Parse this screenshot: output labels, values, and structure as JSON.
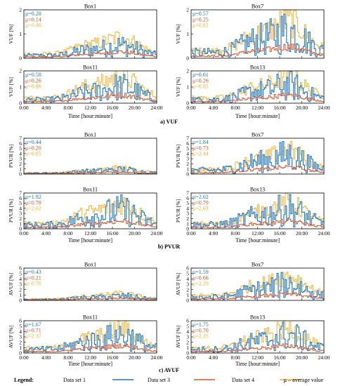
{
  "colors": {
    "set1": "#1f77c4",
    "set3": "#d2562a",
    "set4": "#f2b233"
  },
  "x_ticks": [
    "0:00",
    "4:00",
    "8:00",
    "12:00",
    "16:00",
    "20:00",
    "24:00"
  ],
  "xlabel": "Time [hour:minute]",
  "legend": {
    "title": "Legend:",
    "items": [
      "Data set 1",
      "Data set 3",
      "Data set 4",
      "μ – average value"
    ]
  },
  "sections": [
    {
      "label": "a) VUF",
      "ylabel": "VUF [%]",
      "ylim": [
        0,
        2
      ],
      "y_ticks": [
        "0",
        "1",
        "2"
      ],
      "panels": [
        {
          "title": "Box1",
          "mu_labels": [
            "μ=0.28",
            "μ=0.14",
            "μ=0.46"
          ]
        },
        {
          "title": "Box7",
          "mu_labels": [
            "μ=0.57",
            "μ=0.25",
            "μ=0.82"
          ]
        },
        {
          "title": "Box11",
          "mu_labels": [
            "μ=0.58",
            "μ=0.26",
            "μ=0.86"
          ]
        },
        {
          "title": "Box13",
          "mu_labels": [
            "μ=0.61",
            "μ=0.26",
            "μ=0.85"
          ]
        }
      ]
    },
    {
      "label": "b) PVUR",
      "ylabel": "PVUR [%]",
      "ylim": [
        0,
        7
      ],
      "y_ticks": [
        "0",
        "1",
        "2",
        "3",
        "4",
        "5",
        "6",
        "7"
      ],
      "panels": [
        {
          "title": "Box1",
          "mu_labels": [
            "μ=0.44",
            "μ=0.20",
            "μ=0.65"
          ]
        },
        {
          "title": "Box7",
          "mu_labels": [
            "μ=1.84",
            "μ=0.73",
            "μ=2.44"
          ]
        },
        {
          "title": "Box11",
          "mu_labels": [
            "μ=1.92",
            "μ=0.78",
            "μ=2.62"
          ]
        },
        {
          "title": "Box13",
          "mu_labels": [
            "μ=2.02",
            "μ=0.79",
            "μ=2.63"
          ]
        }
      ]
    },
    {
      "label": "c) AVUF",
      "ylabel": "AVUF [%]",
      "ylim": [
        0,
        6
      ],
      "y_ticks": [
        "0",
        "1",
        "2",
        "3",
        "4",
        "5",
        "6"
      ],
      "panels": [
        {
          "title": "Box1",
          "mu_labels": [
            "μ=0.43",
            "μ=0.21",
            "μ=0.70"
          ]
        },
        {
          "title": "Box7",
          "mu_labels": [
            "μ=1.59",
            "μ=0.66",
            "μ=2.20"
          ]
        },
        {
          "title": "Box11",
          "mu_labels": [
            "μ=1.67",
            "μ=0.71",
            "μ=2.37"
          ]
        },
        {
          "title": "Box13",
          "mu_labels": [
            "μ=1.75",
            "μ=0.70",
            "μ=2.35"
          ]
        }
      ]
    }
  ],
  "chart_data": {
    "type": "line",
    "x_unit": "hour",
    "x_range": [
      0,
      24
    ],
    "series_names": [
      "Data set 1",
      "Data set 3",
      "Data set 4"
    ],
    "profiles": [
      {
        "section": "VUF",
        "box": "Box1",
        "mu": [
          0.28,
          0.14,
          0.46
        ]
      },
      {
        "section": "VUF",
        "box": "Box7",
        "mu": [
          0.57,
          0.25,
          0.82
        ]
      },
      {
        "section": "VUF",
        "box": "Box11",
        "mu": [
          0.58,
          0.26,
          0.86
        ]
      },
      {
        "section": "VUF",
        "box": "Box13",
        "mu": [
          0.61,
          0.26,
          0.85
        ]
      },
      {
        "section": "PVUR",
        "box": "Box1",
        "mu": [
          0.44,
          0.2,
          0.65
        ]
      },
      {
        "section": "PVUR",
        "box": "Box7",
        "mu": [
          1.84,
          0.73,
          2.44
        ]
      },
      {
        "section": "PVUR",
        "box": "Box11",
        "mu": [
          1.92,
          0.78,
          2.62
        ]
      },
      {
        "section": "PVUR",
        "box": "Box13",
        "mu": [
          2.02,
          0.79,
          2.63
        ]
      },
      {
        "section": "AVUF",
        "box": "Box1",
        "mu": [
          0.43,
          0.21,
          0.7
        ]
      },
      {
        "section": "AVUF",
        "box": "Box7",
        "mu": [
          1.59,
          0.66,
          2.2
        ]
      },
      {
        "section": "AVUF",
        "box": "Box11",
        "mu": [
          1.67,
          0.71,
          2.37
        ]
      },
      {
        "section": "AVUF",
        "box": "Box13",
        "mu": [
          1.75,
          0.7,
          2.35
        ]
      }
    ]
  }
}
